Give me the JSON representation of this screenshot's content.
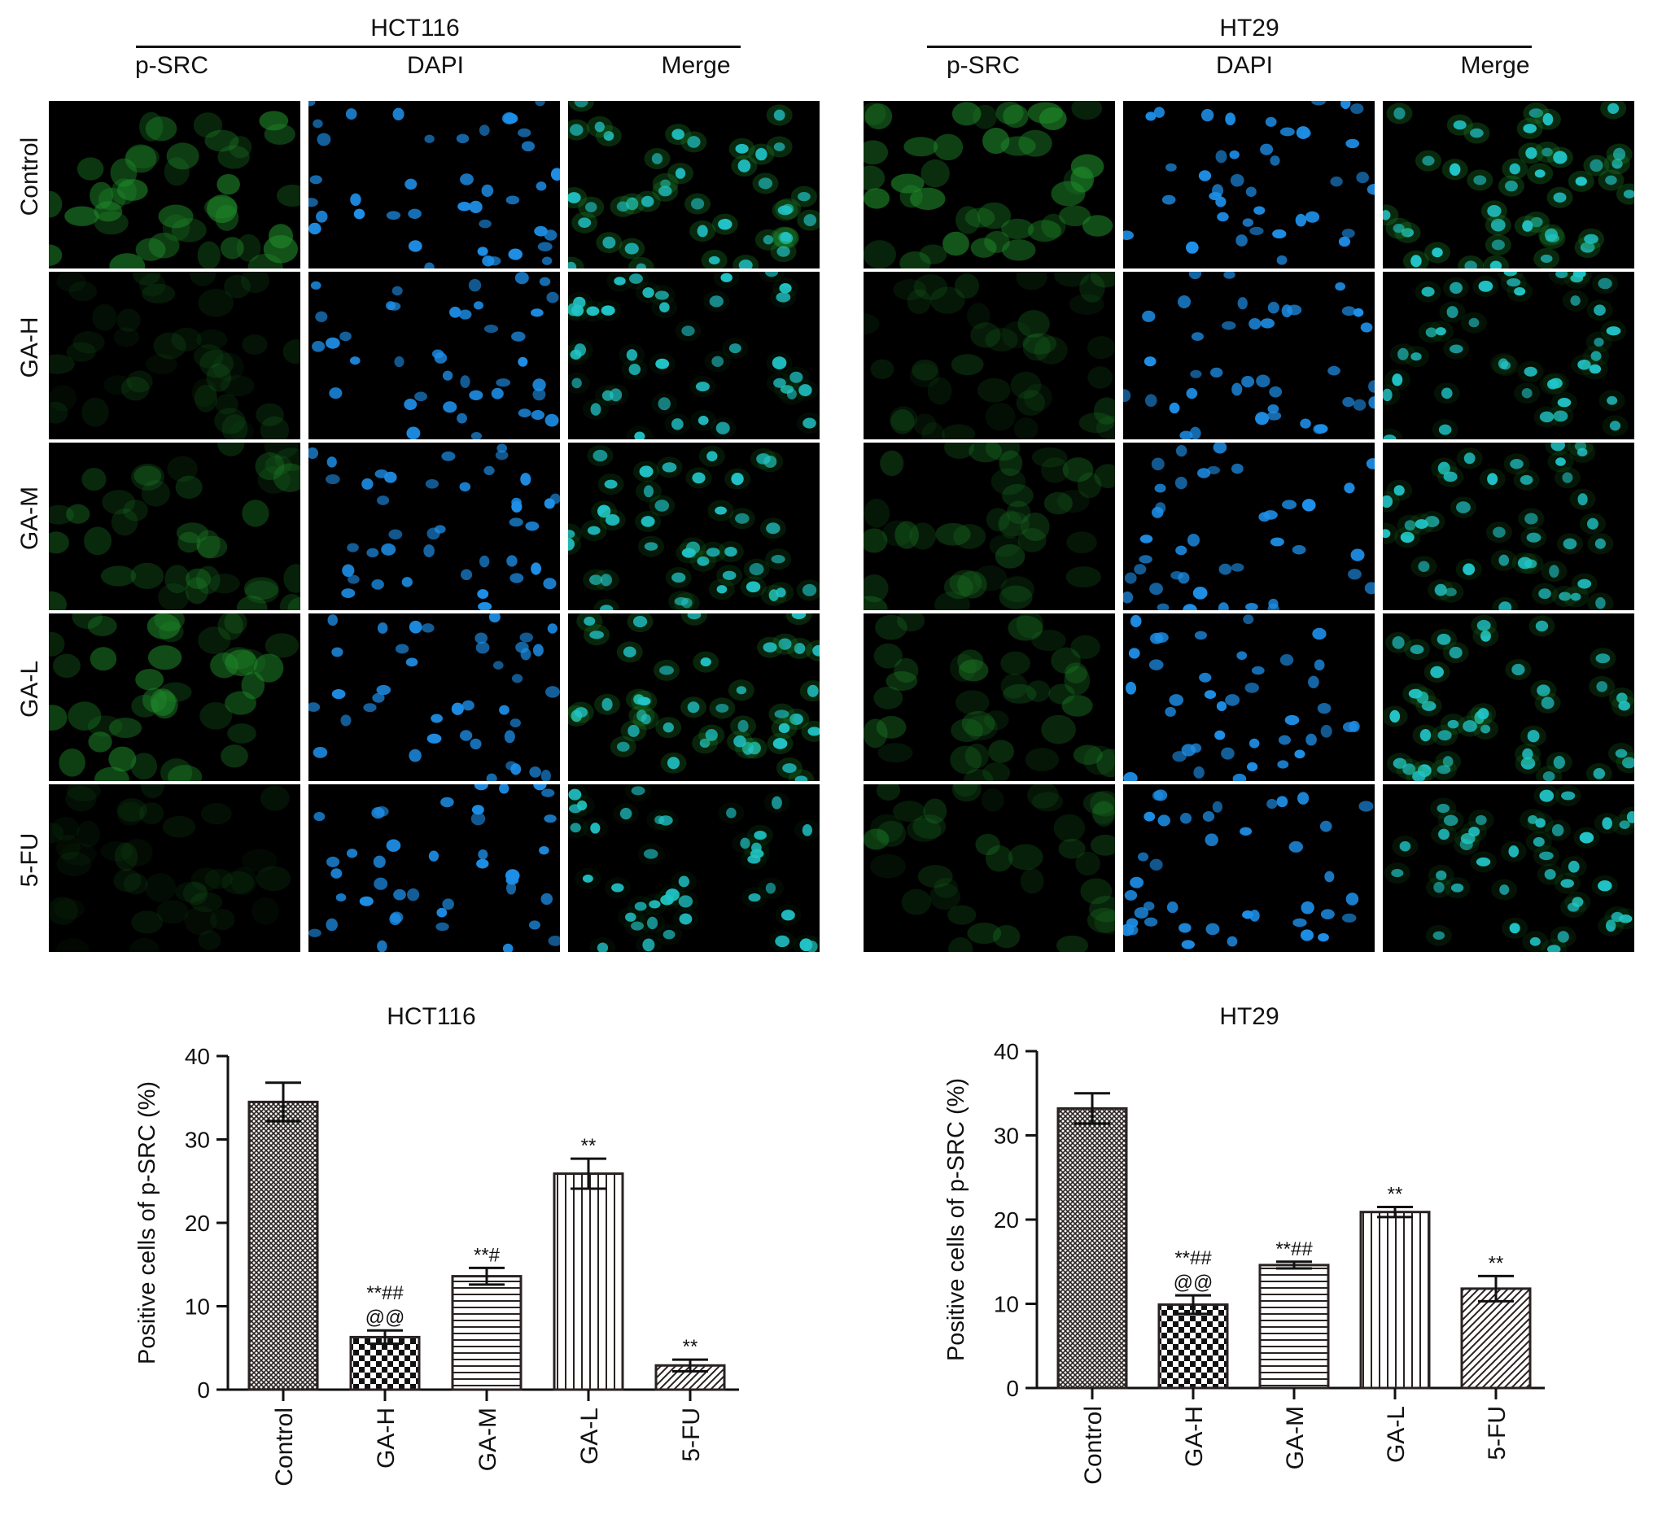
{
  "figure": {
    "panels": [
      {
        "cell_line": "HCT116",
        "columns": [
          "p-SRC",
          "DAPI",
          "Merge"
        ],
        "rows": [
          "Control",
          "GA-H",
          "GA-M",
          "GA-L",
          "5-FU"
        ]
      },
      {
        "cell_line": "HT29",
        "columns": [
          "p-SRC",
          "DAPI",
          "Merge"
        ],
        "rows": [
          "Control",
          "GA-H",
          "GA-M",
          "GA-L",
          "5-FU"
        ]
      }
    ],
    "colors": {
      "green_channel": "#1f8a2a",
      "blue_channel": "#1e8fe8",
      "merge_channel": "#21c4c8"
    }
  },
  "chart_data": [
    {
      "type": "bar",
      "title": "HCT116",
      "ylabel": "Positive cells of p-SRC (%)",
      "xlabel": "",
      "ylim": [
        0,
        40
      ],
      "yticks": [
        0,
        10,
        20,
        30,
        40
      ],
      "categories": [
        "Control",
        "GA-H",
        "GA-M",
        "GA-L",
        "5-FU"
      ],
      "values": [
        34.5,
        6.3,
        13.6,
        25.9,
        2.9
      ],
      "errors": [
        2.3,
        0.8,
        1.0,
        1.8,
        0.7
      ],
      "patterns": [
        "crosshatch",
        "checker",
        "horizontal",
        "vertical",
        "diagonal"
      ],
      "annotations": [
        {
          "category": "GA-H",
          "lines": [
            "**##",
            "@@"
          ]
        },
        {
          "category": "GA-M",
          "lines": [
            "**#"
          ]
        },
        {
          "category": "GA-L",
          "lines": [
            "**"
          ]
        },
        {
          "category": "5-FU",
          "lines": [
            "**"
          ]
        }
      ]
    },
    {
      "type": "bar",
      "title": "HT29",
      "ylabel": "Positive cells of p-SRC (%)",
      "xlabel": "",
      "ylim": [
        0,
        40
      ],
      "yticks": [
        0,
        10,
        20,
        30,
        40
      ],
      "categories": [
        "Control",
        "GA-H",
        "GA-M",
        "GA-L",
        "5-FU"
      ],
      "values": [
        33.2,
        9.9,
        14.6,
        20.9,
        11.8
      ],
      "errors": [
        1.8,
        1.1,
        0.4,
        0.6,
        1.5
      ],
      "patterns": [
        "crosshatch",
        "checker",
        "horizontal",
        "vertical",
        "diagonal"
      ],
      "annotations": [
        {
          "category": "GA-H",
          "lines": [
            "**##",
            "@@"
          ]
        },
        {
          "category": "GA-M",
          "lines": [
            "**##"
          ]
        },
        {
          "category": "GA-L",
          "lines": [
            "**"
          ]
        },
        {
          "category": "5-FU",
          "lines": [
            "**"
          ]
        }
      ]
    }
  ]
}
